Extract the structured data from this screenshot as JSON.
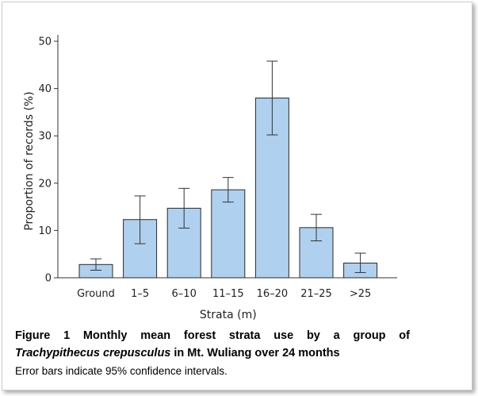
{
  "chart_data": {
    "type": "bar",
    "categories": [
      "Ground",
      "1–5",
      "6–10",
      "11–15",
      "16–20",
      "21–25",
      ">25"
    ],
    "series": [
      {
        "values": [
          2.8,
          12.3,
          14.7,
          18.6,
          38.0,
          10.6,
          3.1
        ],
        "error_low": [
          1.6,
          7.2,
          10.5,
          16.0,
          30.2,
          7.8,
          1.1
        ],
        "error_high": [
          4.0,
          17.3,
          18.9,
          21.2,
          45.8,
          13.4,
          5.2
        ]
      }
    ],
    "xlabel": "Strata (m)",
    "ylabel": "Proportion of records (%)",
    "ylim": [
      0,
      50
    ],
    "yticks": [
      0,
      10,
      20,
      30,
      40,
      50
    ],
    "grid": false,
    "bar_color": "#afd0ee",
    "bar_edge_color": "#2b2b2b"
  },
  "caption": {
    "line1": "Figure 1 Monthly mean forest strata use by a group of",
    "species": "Trachypithecus crepusculus",
    "line2_rest": " in Mt. Wuliang over 24 months",
    "note": "Error bars indicate 95% confidence intervals."
  }
}
